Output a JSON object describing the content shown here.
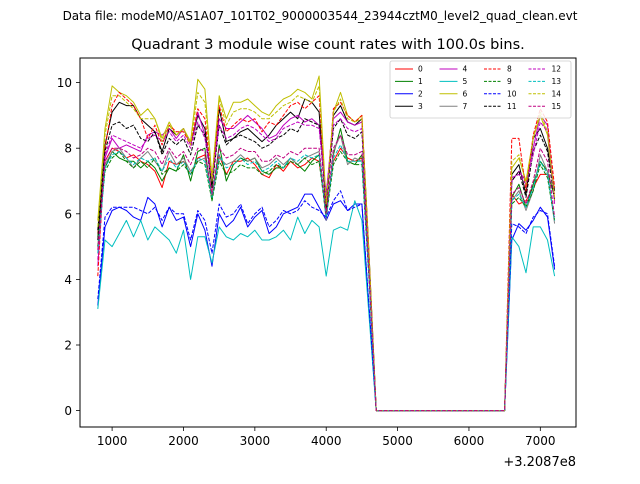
{
  "header": {
    "data_file": "Data file: modeM0/AS1A07_101T02_9000003544_23944cztM0_level2_quad_clean.evt"
  },
  "chart_data": {
    "type": "line",
    "title": "Quadrant 3 module wise count rates with 100.0s bins.",
    "xlabel": "",
    "ylabel": "",
    "x_offset_label": "+3.2087e8",
    "xlim": [
      550,
      7500
    ],
    "ylim": [
      -0.5,
      10.75
    ],
    "xticks": [
      1000,
      2000,
      3000,
      4000,
      5000,
      6000,
      7000
    ],
    "xtick_labels": [
      "1000",
      "2000",
      "3000",
      "4000",
      "5000",
      "6000",
      "7000"
    ],
    "yticks": [
      0,
      2,
      4,
      6,
      8,
      10
    ],
    "ytick_labels": [
      "0",
      "2",
      "4",
      "6",
      "8",
      "10"
    ],
    "grid": false,
    "legend_position": "top-right",
    "legend_columns": 4,
    "x": [
      800,
      900,
      1000,
      1100,
      1200,
      1300,
      1400,
      1500,
      1600,
      1700,
      1800,
      1900,
      2000,
      2100,
      2200,
      2300,
      2400,
      2500,
      2600,
      2700,
      2800,
      2900,
      3000,
      3100,
      3200,
      3300,
      3400,
      3500,
      3600,
      3700,
      3800,
      3900,
      4000,
      4100,
      4200,
      4300,
      4400,
      4500,
      4600,
      4700,
      4800,
      6500,
      6600,
      6700,
      6800,
      6900,
      7000,
      7100,
      7200
    ],
    "series": [
      {
        "name": "0",
        "color": "#ff0000",
        "dash": "solid",
        "values": [
          5.4,
          7.6,
          8.0,
          7.9,
          7.7,
          7.8,
          7.6,
          7.5,
          7.3,
          6.8,
          7.6,
          7.5,
          7.6,
          7.2,
          7.7,
          7.8,
          6.6,
          7.8,
          7.2,
          7.6,
          7.6,
          7.7,
          7.5,
          7.2,
          7.1,
          7.5,
          7.3,
          7.6,
          7.4,
          7.5,
          7.7,
          7.6,
          6.1,
          7.6,
          8.0,
          7.7,
          7.6,
          7.7,
          4.2,
          0.0,
          0.0,
          0.0,
          6.6,
          6.3,
          6.4,
          6.8,
          7.2,
          7.2,
          6.6
        ]
      },
      {
        "name": "1",
        "color": "#008000",
        "dash": "solid",
        "values": [
          5.3,
          7.4,
          7.9,
          7.7,
          7.6,
          7.6,
          7.4,
          7.6,
          7.4,
          7.0,
          7.4,
          7.3,
          7.8,
          7.0,
          7.9,
          8.0,
          6.4,
          8.1,
          7.0,
          7.5,
          7.7,
          7.6,
          7.7,
          7.3,
          7.2,
          7.4,
          7.4,
          7.7,
          7.5,
          7.3,
          7.6,
          7.8,
          5.9,
          7.8,
          8.6,
          7.6,
          7.5,
          7.8,
          4.3,
          0.0,
          0.0,
          0.0,
          6.5,
          6.9,
          6.2,
          6.9,
          7.6,
          7.3,
          6.5
        ]
      },
      {
        "name": "2",
        "color": "#0000ff",
        "dash": "solid",
        "values": [
          3.2,
          5.6,
          6.1,
          6.2,
          6.1,
          5.9,
          5.8,
          6.5,
          6.3,
          5.6,
          6.2,
          5.8,
          5.9,
          5.0,
          6.0,
          5.5,
          4.4,
          6.0,
          5.6,
          5.8,
          6.2,
          5.6,
          5.9,
          6.1,
          5.4,
          5.6,
          6.0,
          6.1,
          6.2,
          6.6,
          6.6,
          6.2,
          5.8,
          6.3,
          6.4,
          6.1,
          6.3,
          6.3,
          3.1,
          0.0,
          0.0,
          0.0,
          5.2,
          5.7,
          5.5,
          5.8,
          6.2,
          5.9,
          4.3
        ]
      },
      {
        "name": "3",
        "color": "#000000",
        "dash": "solid",
        "values": [
          5.5,
          8.1,
          9.1,
          9.4,
          9.3,
          9.3,
          8.9,
          8.7,
          8.5,
          7.9,
          8.6,
          8.4,
          8.6,
          8.1,
          9.0,
          8.6,
          6.8,
          9.2,
          8.2,
          8.3,
          8.5,
          8.6,
          8.4,
          8.2,
          8.4,
          8.7,
          8.9,
          9.1,
          8.9,
          9.5,
          9.4,
          9.1,
          6.2,
          9.0,
          9.3,
          8.8,
          8.7,
          8.9,
          4.8,
          0.0,
          0.0,
          0.0,
          7.2,
          7.5,
          6.6,
          8.3,
          8.6,
          8.0,
          6.7
        ]
      },
      {
        "name": "4",
        "color": "#bf00bf",
        "dash": "solid",
        "values": [
          4.4,
          7.7,
          8.3,
          8.0,
          8.1,
          8.0,
          7.9,
          8.4,
          8.5,
          8.4,
          8.6,
          8.3,
          8.6,
          8.1,
          9.1,
          8.4,
          7.1,
          8.9,
          8.6,
          8.6,
          8.8,
          9.0,
          8.8,
          8.6,
          8.3,
          8.4,
          8.7,
          8.9,
          9.0,
          8.8,
          8.9,
          8.7,
          6.6,
          8.9,
          9.1,
          8.8,
          8.7,
          8.8,
          4.6,
          0.0,
          0.0,
          0.0,
          7.0,
          7.3,
          7.0,
          8.0,
          9.0,
          8.7,
          6.4
        ]
      },
      {
        "name": "5",
        "color": "#00bfbf",
        "dash": "solid",
        "values": [
          3.1,
          5.2,
          5.0,
          5.4,
          5.8,
          5.3,
          5.8,
          5.2,
          5.6,
          5.4,
          5.2,
          4.8,
          5.5,
          4.0,
          5.3,
          5.3,
          4.5,
          5.6,
          5.3,
          5.2,
          5.4,
          5.3,
          5.5,
          5.2,
          5.2,
          5.3,
          5.5,
          5.2,
          5.9,
          5.4,
          5.8,
          5.6,
          4.1,
          5.5,
          5.6,
          5.5,
          6.4,
          5.8,
          2.9,
          0.0,
          0.0,
          0.0,
          5.3,
          5.0,
          4.2,
          5.6,
          5.6,
          5.2,
          4.1
        ]
      },
      {
        "name": "6",
        "color": "#bfbf00",
        "dash": "solid",
        "values": [
          5.8,
          8.6,
          9.9,
          9.7,
          9.6,
          9.4,
          9.0,
          9.2,
          8.9,
          8.3,
          8.8,
          8.4,
          8.6,
          8.2,
          10.1,
          9.8,
          7.1,
          9.6,
          8.9,
          9.4,
          9.4,
          9.5,
          9.3,
          9.1,
          9.0,
          9.3,
          9.5,
          9.6,
          9.8,
          9.7,
          9.5,
          10.2,
          6.3,
          9.1,
          9.7,
          9.0,
          8.8,
          9.0,
          4.8,
          0.0,
          0.0,
          0.0,
          7.4,
          7.7,
          7.0,
          8.3,
          9.0,
          8.4,
          6.4
        ]
      },
      {
        "name": "7",
        "color": "#808080",
        "dash": "solid",
        "values": [
          5.0,
          7.5,
          7.9,
          8.0,
          7.7,
          7.4,
          7.7,
          7.9,
          7.6,
          7.3,
          7.9,
          7.5,
          7.7,
          7.3,
          7.6,
          7.7,
          6.5,
          7.7,
          7.5,
          7.6,
          7.8,
          7.6,
          7.7,
          7.4,
          7.5,
          7.7,
          7.5,
          7.7,
          7.5,
          7.7,
          7.8,
          7.9,
          5.8,
          7.9,
          8.4,
          7.5,
          7.7,
          7.6,
          4.1,
          0.0,
          0.0,
          0.0,
          6.4,
          6.7,
          6.1,
          6.7,
          7.8,
          7.3,
          5.7
        ]
      },
      {
        "name": "8",
        "color": "#ff0000",
        "dash": "dashed",
        "values": [
          4.1,
          8.0,
          9.3,
          9.7,
          9.5,
          9.3,
          8.9,
          8.3,
          8.7,
          8.1,
          8.7,
          8.5,
          8.5,
          8.1,
          9.2,
          8.9,
          7.0,
          9.3,
          8.5,
          8.7,
          8.9,
          8.8,
          8.9,
          8.5,
          8.8,
          8.7,
          9.0,
          9.3,
          9.4,
          9.2,
          9.4,
          9.6,
          6.2,
          9.2,
          9.4,
          9.0,
          8.8,
          9.0,
          4.7,
          0.0,
          0.0,
          0.0,
          8.3,
          8.3,
          6.7,
          8.4,
          9.2,
          8.8,
          6.8
        ]
      },
      {
        "name": "9",
        "color": "#008000",
        "dash": "dashed",
        "values": [
          5.0,
          7.3,
          7.7,
          7.9,
          7.6,
          7.4,
          7.6,
          7.4,
          7.7,
          7.2,
          7.4,
          7.3,
          7.5,
          7.2,
          7.6,
          7.5,
          6.4,
          7.6,
          7.2,
          7.3,
          7.5,
          7.4,
          7.4,
          7.2,
          7.3,
          7.5,
          7.4,
          7.6,
          7.5,
          7.7,
          7.5,
          7.6,
          5.9,
          7.5,
          7.9,
          7.6,
          7.5,
          7.5,
          4.0,
          0.0,
          0.0,
          0.0,
          6.3,
          6.5,
          6.2,
          6.7,
          7.5,
          7.1,
          5.8
        ]
      },
      {
        "name": "10",
        "color": "#0000ff",
        "dash": "dashed",
        "values": [
          3.4,
          5.9,
          6.2,
          6.2,
          6.2,
          6.2,
          6.1,
          6.0,
          6.2,
          5.8,
          6.2,
          6.0,
          6.0,
          5.2,
          6.1,
          5.8,
          4.8,
          6.3,
          5.9,
          6.0,
          6.3,
          5.7,
          6.0,
          6.2,
          5.6,
          5.8,
          6.1,
          6.0,
          6.1,
          6.4,
          6.2,
          6.1,
          5.9,
          6.4,
          6.7,
          6.1,
          6.2,
          6.3,
          3.2,
          0.0,
          0.0,
          0.0,
          5.7,
          5.6,
          5.4,
          5.9,
          6.1,
          6.0,
          4.4
        ]
      },
      {
        "name": "11",
        "color": "#000000",
        "dash": "dashed",
        "values": [
          5.2,
          7.9,
          8.7,
          8.8,
          8.6,
          8.7,
          8.3,
          8.2,
          8.5,
          7.8,
          8.3,
          8.1,
          8.3,
          7.8,
          8.7,
          8.4,
          6.8,
          8.7,
          8.1,
          8.3,
          8.4,
          8.3,
          8.2,
          8.0,
          8.1,
          8.3,
          8.4,
          8.6,
          8.5,
          8.9,
          8.8,
          8.7,
          6.2,
          8.6,
          8.9,
          8.4,
          8.3,
          8.5,
          4.5,
          0.0,
          0.0,
          0.0,
          7.0,
          7.3,
          6.5,
          7.9,
          8.4,
          7.9,
          6.4
        ]
      },
      {
        "name": "12",
        "color": "#bf00bf",
        "dash": "dashed",
        "values": [
          4.6,
          7.8,
          8.4,
          8.3,
          8.2,
          8.1,
          8.0,
          8.3,
          8.4,
          8.2,
          8.5,
          8.2,
          8.4,
          8.0,
          8.8,
          8.3,
          7.0,
          8.7,
          8.3,
          8.4,
          8.6,
          8.7,
          8.6,
          8.4,
          8.2,
          8.3,
          8.6,
          8.7,
          8.8,
          8.7,
          8.7,
          8.6,
          6.5,
          8.7,
          8.9,
          8.6,
          8.5,
          8.6,
          4.5,
          0.0,
          0.0,
          0.0,
          7.1,
          7.2,
          6.9,
          7.8,
          8.8,
          8.5,
          6.3
        ]
      },
      {
        "name": "13",
        "color": "#00bfbf",
        "dash": "dashed",
        "values": [
          4.8,
          7.4,
          7.8,
          7.9,
          7.7,
          7.5,
          7.7,
          7.6,
          7.7,
          7.3,
          7.7,
          7.4,
          7.6,
          7.2,
          7.7,
          7.6,
          6.5,
          7.8,
          7.4,
          7.5,
          7.7,
          7.5,
          7.6,
          7.3,
          7.4,
          7.6,
          7.4,
          7.7,
          7.6,
          7.8,
          7.7,
          7.8,
          5.9,
          7.7,
          8.1,
          7.6,
          7.6,
          7.6,
          4.1,
          0.0,
          0.0,
          0.0,
          6.4,
          6.6,
          6.2,
          6.8,
          7.6,
          7.2,
          5.8
        ]
      },
      {
        "name": "14",
        "color": "#bfbf00",
        "dash": "dashed",
        "values": [
          5.6,
          8.4,
          9.6,
          9.6,
          9.4,
          9.2,
          8.9,
          8.9,
          8.9,
          8.2,
          8.7,
          8.4,
          8.6,
          8.1,
          9.7,
          9.4,
          7.0,
          9.5,
          8.7,
          9.1,
          9.2,
          9.2,
          9.1,
          8.9,
          8.9,
          9.1,
          9.3,
          9.4,
          9.6,
          9.5,
          9.4,
          9.9,
          6.3,
          9.1,
          9.5,
          8.9,
          8.8,
          8.9,
          4.7,
          0.0,
          0.0,
          0.0,
          7.6,
          7.8,
          6.9,
          8.3,
          9.1,
          8.5,
          6.5
        ]
      },
      {
        "name": "15",
        "color": "#bf0080",
        "dash": "dashed",
        "values": [
          4.9,
          7.6,
          8.0,
          8.0,
          7.9,
          7.7,
          7.8,
          8.0,
          7.9,
          7.5,
          8.0,
          7.7,
          7.9,
          7.5,
          8.0,
          7.9,
          6.6,
          8.0,
          7.7,
          7.8,
          8.0,
          7.9,
          7.9,
          7.6,
          7.6,
          7.8,
          7.7,
          7.9,
          7.8,
          8.0,
          8.0,
          8.0,
          6.0,
          8.0,
          8.4,
          7.8,
          7.8,
          7.9,
          4.2,
          0.0,
          0.0,
          0.0,
          6.6,
          6.8,
          6.3,
          7.0,
          8.0,
          7.6,
          5.9
        ]
      }
    ]
  }
}
